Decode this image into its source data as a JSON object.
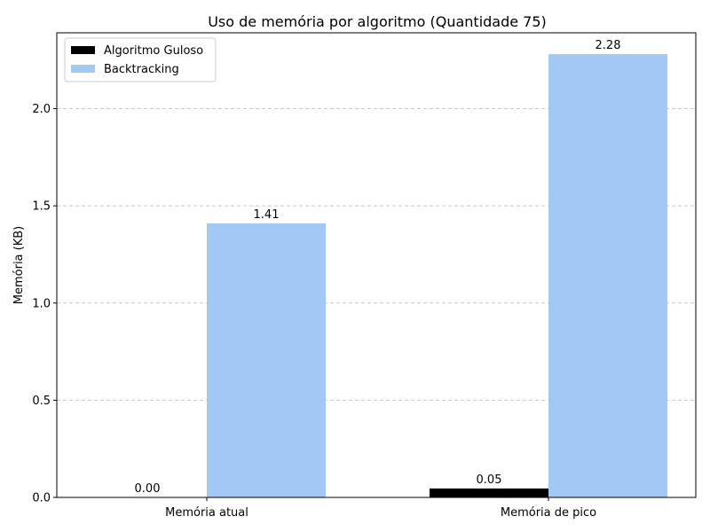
{
  "chart_data": {
    "type": "bar",
    "title": "Uso de memória por algoritmo (Quantidade 75)",
    "xlabel": "",
    "ylabel": "Memória (KB)",
    "categories": [
      "Memória atual",
      "Memória de pico"
    ],
    "series": [
      {
        "name": "Algoritmo Guloso",
        "values": [
          0.0,
          0.046
        ],
        "labels": [
          "0.00",
          "0.05"
        ],
        "color": "#000000"
      },
      {
        "name": "Backtracking",
        "values": [
          1.41,
          2.28
        ],
        "labels": [
          "1.41",
          "2.28"
        ],
        "color": "#a1c9f4"
      }
    ],
    "ylim": [
      0,
      2.39
    ],
    "yticks": [
      0.0,
      0.5,
      1.0,
      1.5,
      2.0
    ],
    "ytick_labels": [
      "0.0",
      "0.5",
      "1.0",
      "1.5",
      "2.0"
    ],
    "grid": "y-dashed",
    "legend_position": "top-left"
  }
}
